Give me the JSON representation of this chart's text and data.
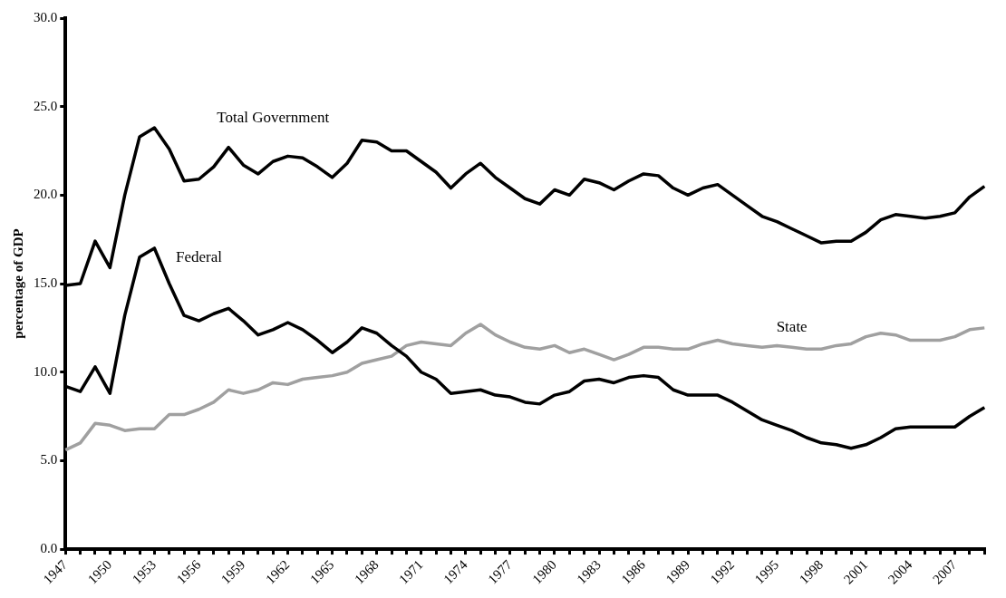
{
  "chart_data": {
    "type": "line",
    "ylabel": "percentage of GDP",
    "categories": [
      "1947",
      null,
      null,
      "1950",
      null,
      null,
      "1953",
      null,
      null,
      "1956",
      null,
      null,
      "1959",
      null,
      null,
      "1962",
      null,
      null,
      "1965",
      null,
      null,
      "1968",
      null,
      null,
      "1971",
      null,
      null,
      "1974",
      null,
      null,
      "1977",
      null,
      null,
      "1980",
      null,
      null,
      "1983",
      null,
      null,
      "1986",
      null,
      null,
      "1989",
      null,
      null,
      "1992",
      null,
      null,
      "1995",
      null,
      null,
      "1998",
      null,
      null,
      "2001",
      null,
      null,
      "2004",
      null,
      null,
      "2007",
      null,
      null
    ],
    "series": [
      {
        "name": "Total Government",
        "color": "#000000",
        "values": [
          14.9,
          15.0,
          17.4,
          15.9,
          20.0,
          23.3,
          23.8,
          22.6,
          20.8,
          20.9,
          21.6,
          22.7,
          21.7,
          21.2,
          21.9,
          22.2,
          22.1,
          21.6,
          21.0,
          21.8,
          23.1,
          23.0,
          22.5,
          22.5,
          21.9,
          21.3,
          20.4,
          21.2,
          21.8,
          21.0,
          20.4,
          19.8,
          19.5,
          20.3,
          20.0,
          20.9,
          20.7,
          20.3,
          20.8,
          21.2,
          21.1,
          20.4,
          20.0,
          20.4,
          20.6,
          20.0,
          19.4,
          18.8,
          18.5,
          18.1,
          17.7,
          17.3,
          17.4,
          17.4,
          17.9,
          18.6,
          18.9,
          18.8,
          18.7,
          18.8,
          19.0,
          19.9,
          20.5
        ]
      },
      {
        "name": "Federal",
        "color": "#000000",
        "values": [
          9.2,
          8.9,
          10.3,
          8.8,
          13.2,
          16.5,
          17.0,
          15.0,
          13.2,
          12.9,
          13.3,
          13.6,
          12.9,
          12.1,
          12.4,
          12.8,
          12.4,
          11.8,
          11.1,
          11.7,
          12.5,
          12.2,
          11.5,
          10.9,
          10.0,
          9.6,
          8.8,
          8.9,
          9.0,
          8.7,
          8.6,
          8.3,
          8.2,
          8.7,
          8.9,
          9.5,
          9.6,
          9.4,
          9.7,
          9.8,
          9.7,
          9.0,
          8.7,
          8.7,
          8.7,
          8.3,
          7.8,
          7.3,
          7.0,
          6.7,
          6.3,
          6.0,
          5.9,
          5.7,
          5.9,
          6.3,
          6.8,
          6.9,
          6.9,
          6.9,
          6.9,
          7.5,
          8.0
        ]
      },
      {
        "name": "State",
        "color": "#a0a0a0",
        "values": [
          5.6,
          6.0,
          7.1,
          7.0,
          6.7,
          6.8,
          6.8,
          7.6,
          7.6,
          7.9,
          8.3,
          9.0,
          8.8,
          9.0,
          9.4,
          9.3,
          9.6,
          9.7,
          9.8,
          10.0,
          10.5,
          10.7,
          10.9,
          11.5,
          11.7,
          11.6,
          11.5,
          12.2,
          12.7,
          12.1,
          11.7,
          11.4,
          11.3,
          11.5,
          11.1,
          11.3,
          11.0,
          10.7,
          11.0,
          11.4,
          11.4,
          11.3,
          11.3,
          11.6,
          11.8,
          11.6,
          11.5,
          11.4,
          11.5,
          11.4,
          11.3,
          11.3,
          11.5,
          11.6,
          12.0,
          12.2,
          12.1,
          11.8,
          11.8,
          11.8,
          12.0,
          12.4,
          12.5
        ]
      }
    ],
    "ylim": [
      0,
      30
    ],
    "yticks": [
      {
        "value": 0,
        "label": "0.0"
      },
      {
        "value": 5,
        "label": "5.0"
      },
      {
        "value": 10,
        "label": "10.0"
      },
      {
        "value": 15,
        "label": "15.0"
      },
      {
        "value": 20,
        "label": "20.0"
      },
      {
        "value": 25,
        "label": "25.0"
      },
      {
        "value": 30,
        "label": "30.0"
      }
    ],
    "grid": false,
    "legend": false,
    "marker": "none",
    "line_style": "solid"
  }
}
